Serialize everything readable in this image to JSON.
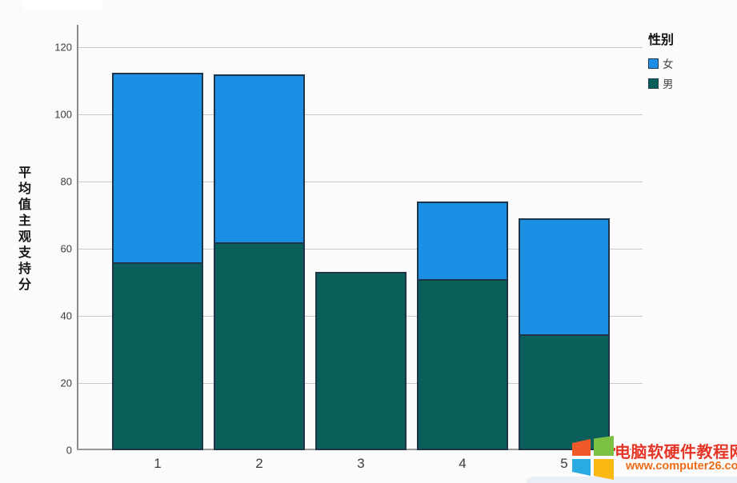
{
  "chart_data": {
    "type": "bar",
    "stacked": true,
    "title": "",
    "xlabel": "",
    "ylabel": "平均值主观支持分",
    "categories": [
      "1",
      "2",
      "3",
      "4",
      "5"
    ],
    "series": [
      {
        "name": "男",
        "color": "#0b5f5b",
        "values": [
          56,
          62,
          53,
          51,
          34.5
        ]
      },
      {
        "name": "女",
        "color": "#1b8fe4",
        "values": [
          56.5,
          50,
          0,
          23,
          34.5
        ]
      }
    ],
    "totals": [
      112.5,
      112,
      53,
      74,
      69
    ],
    "ylim": [
      0,
      126
    ],
    "yticks": [
      0,
      20,
      40,
      60,
      80,
      100,
      120
    ],
    "grid": true,
    "legend_position": "top-right",
    "bar_border_color": "#1e3448",
    "gridline_color": "#c9c9c9"
  },
  "y_axis": {
    "title": "平均值主观支持分"
  },
  "legend": {
    "title": "性别",
    "items": [
      {
        "label": "女",
        "color": "#1b8fe4"
      },
      {
        "label": "男",
        "color": "#0b5f5b"
      }
    ]
  },
  "watermark": {
    "site_name": "电脑软硬件教程网",
    "site_url": "www.computer26.com",
    "name_color": "#e43527",
    "url_color": "#ee6c16",
    "logo_colors": [
      "#f05a28",
      "#7cc142",
      "#29abe2",
      "#fdb913"
    ]
  }
}
